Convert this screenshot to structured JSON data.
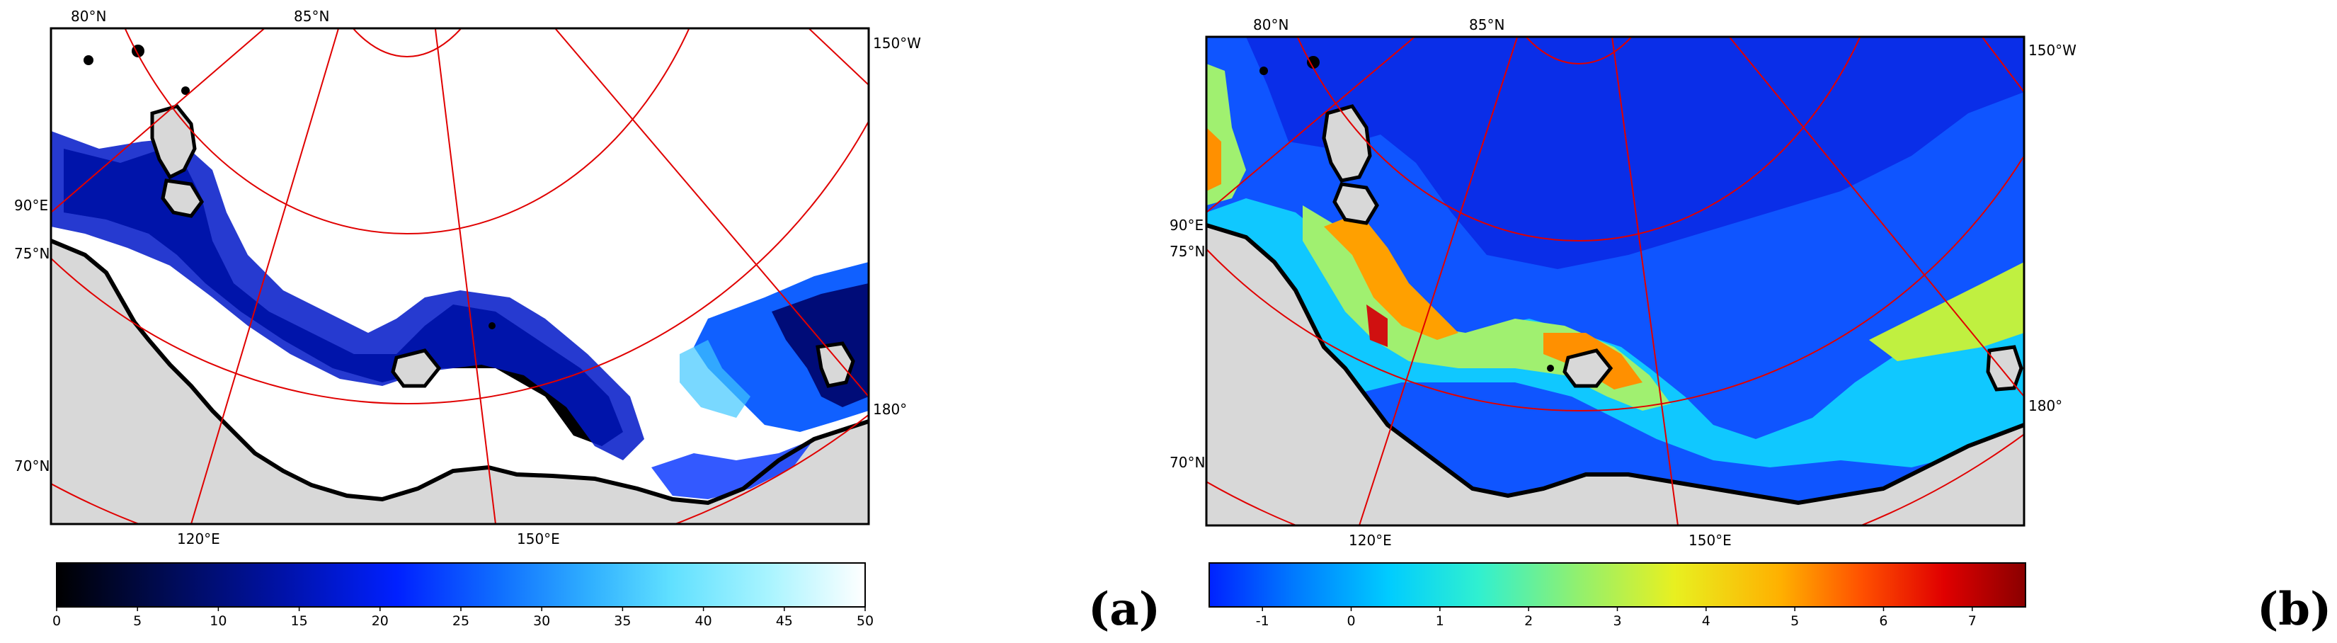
{
  "panels": [
    {
      "id": "a",
      "letter": "(a)",
      "lat_labels": [
        "80°N",
        "85°N",
        "75°N",
        "70°N"
      ],
      "lon_labels": [
        "150°W",
        "90°E",
        "180°",
        "120°E",
        "150°E"
      ],
      "colorbar": {
        "ticks": [
          "0",
          "5",
          "10",
          "15",
          "20",
          "25",
          "30",
          "35",
          "40",
          "45",
          "50"
        ],
        "min": 0,
        "max": 50,
        "colors": [
          "#000000",
          "#000a4a",
          "#0012a8",
          "#0020ff",
          "#1070ff",
          "#30b0ff",
          "#60e0ff",
          "#a8f4ff",
          "#ffffff"
        ]
      }
    },
    {
      "id": "b",
      "letter": "(b)",
      "lat_labels": [
        "80°N",
        "85°N",
        "75°N",
        "70°N"
      ],
      "lon_labels": [
        "150°W",
        "90°E",
        "180°",
        "120°E",
        "150°E"
      ],
      "colorbar": {
        "ticks": [
          "-1",
          "0",
          "1",
          "2",
          "3",
          "4",
          "5",
          "6",
          "7"
        ],
        "min": -1.6,
        "max": 7.6,
        "colors": [
          "#0022ff",
          "#0077ff",
          "#00ccff",
          "#30f0d0",
          "#90f070",
          "#e8f020",
          "#ffb000",
          "#ff5000",
          "#e00000",
          "#8a0000"
        ]
      }
    }
  ]
}
